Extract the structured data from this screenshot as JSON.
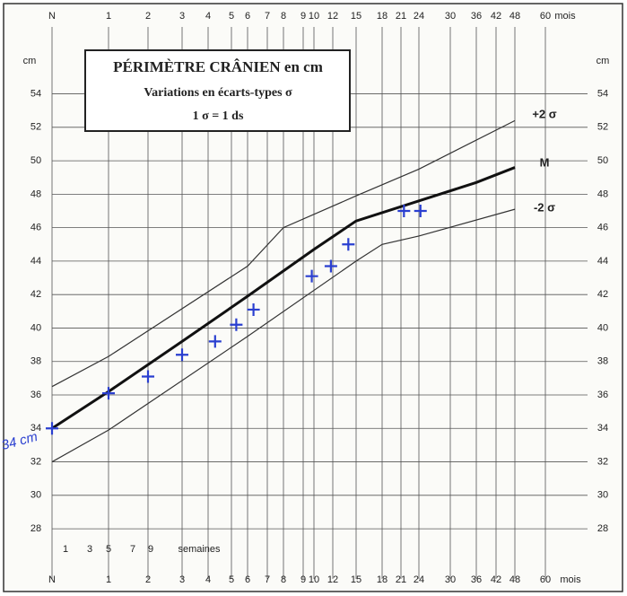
{
  "chart_data": {
    "type": "line",
    "title": "PÉRIMÈTRE CRÂNIEN en cm",
    "subtitle": "Variations en écarts-types σ",
    "note": "1 σ = 1 ds",
    "y_label": "cm",
    "x_label": "mois",
    "week_label": "semaines",
    "annotation": "34 cm",
    "xticks": [
      {
        "value": 0,
        "label": "N"
      },
      1,
      2,
      3,
      4,
      5,
      6,
      7,
      8,
      9,
      10,
      12,
      15,
      18,
      21,
      24,
      30,
      36,
      42,
      48,
      60
    ],
    "week_ticks": [
      1,
      3,
      5,
      7,
      9
    ],
    "ylim": [
      25,
      58
    ],
    "yticks": [
      28,
      30,
      32,
      34,
      36,
      38,
      40,
      42,
      44,
      46,
      48,
      50,
      52,
      54
    ],
    "grid": true,
    "series": [
      {
        "name": "+2 σ",
        "color": "#333333",
        "x": [
          0,
          1,
          6,
          8,
          15,
          24,
          48
        ],
        "values": [
          36.5,
          38.3,
          43.7,
          46.0,
          47.9,
          49.5,
          52.4
        ]
      },
      {
        "name": "M",
        "color": "#111111",
        "x": [
          0,
          1,
          3,
          6,
          10,
          15,
          24,
          36,
          48
        ],
        "values": [
          34,
          36.2,
          39.2,
          41.9,
          44.7,
          46.4,
          47.6,
          48.7,
          49.6
        ]
      },
      {
        "name": "-2 σ",
        "color": "#333333",
        "x": [
          0,
          1,
          6,
          15,
          18,
          24,
          48
        ],
        "values": [
          32.0,
          33.9,
          39.5,
          44.0,
          45.0,
          45.5,
          47.1
        ]
      }
    ],
    "measurements": {
      "type": "scatter",
      "color": "#2a3fd0",
      "x": [
        0,
        1,
        2,
        3,
        4.3,
        5.3,
        6.3,
        9.8,
        11.8,
        14,
        21.5,
        24.3
      ],
      "values": [
        34,
        36.1,
        37.1,
        38.4,
        39.2,
        40.2,
        41.1,
        43.1,
        43.7,
        45.0,
        47.0,
        47.0
      ]
    }
  }
}
